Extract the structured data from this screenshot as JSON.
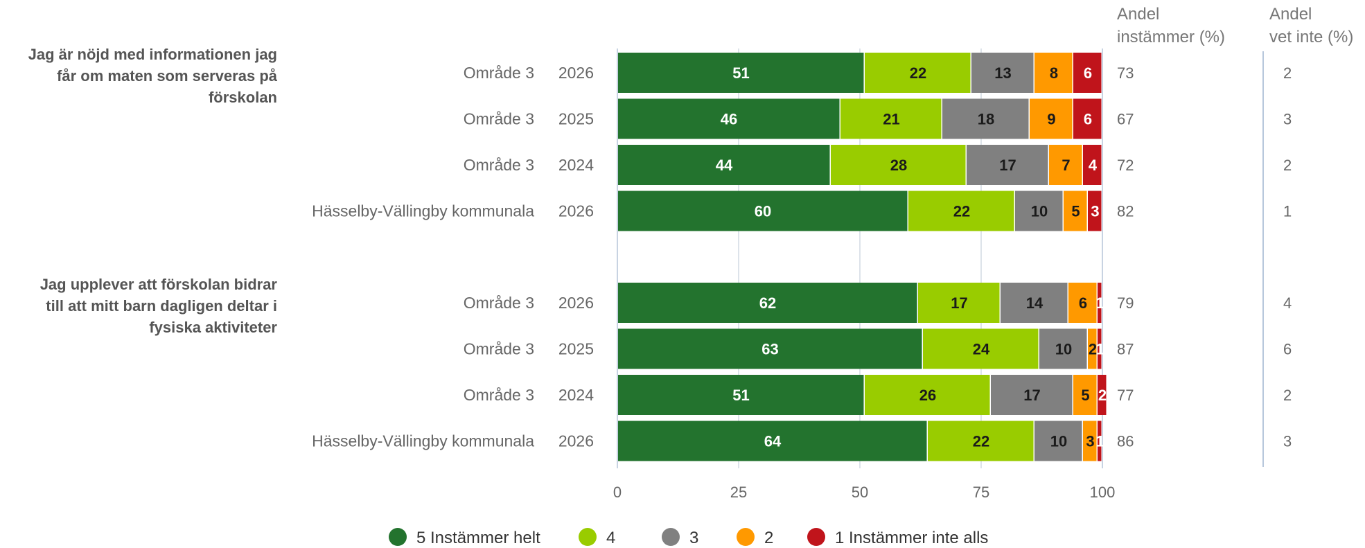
{
  "chart_data": {
    "type": "bar",
    "orientation": "horizontal",
    "stacked": true,
    "xlim": [
      0,
      100
    ],
    "xticks": [
      "0",
      "25",
      "50",
      "75",
      "100"
    ],
    "grid": true,
    "legend_position": "bottom",
    "column_headers": {
      "agree_line1": "Andel",
      "agree_line2": "instämmer (%)",
      "dontknow_line1": "Andel",
      "dontknow_line2": "vet inte (%)"
    },
    "series": [
      {
        "name": "5 Instämmer helt",
        "color": "#23732e",
        "label_color": "#ffffff"
      },
      {
        "name": "4",
        "color": "#99cc00",
        "label_color": "#1a1a1a"
      },
      {
        "name": "3",
        "color": "#808080",
        "label_color": "#1a1a1a"
      },
      {
        "name": "2",
        "color": "#ff9900",
        "label_color": "#1a1a1a"
      },
      {
        "name": "1 Instämmer inte alls",
        "color": "#c0141b",
        "label_color": "#ffffff"
      }
    ],
    "groups": [
      {
        "question_lines": [
          "Jag är nöjd med informationen jag",
          "får om maten som serveras på",
          "förskolan"
        ],
        "rows": [
          {
            "unit": "Område 3",
            "year": "2026",
            "values": [
              51,
              22,
              13,
              8,
              6
            ],
            "agree": "73",
            "dontknow": "2"
          },
          {
            "unit": "Område 3",
            "year": "2025",
            "values": [
              46,
              21,
              18,
              9,
              6
            ],
            "agree": "67",
            "dontknow": "3"
          },
          {
            "unit": "Område 3",
            "year": "2024",
            "values": [
              44,
              28,
              17,
              7,
              4
            ],
            "agree": "72",
            "dontknow": "2"
          },
          {
            "unit": "Hässelby-Vällingby kommunala",
            "year": "2026",
            "values": [
              60,
              22,
              10,
              5,
              3
            ],
            "agree": "82",
            "dontknow": "1"
          }
        ]
      },
      {
        "question_lines": [
          "Jag upplever att förskolan bidrar",
          "till att mitt barn dagligen deltar i",
          "fysiska aktiviteter"
        ],
        "rows": [
          {
            "unit": "Område 3",
            "year": "2026",
            "values": [
              62,
              17,
              14,
              6,
              1
            ],
            "agree": "79",
            "dontknow": "4"
          },
          {
            "unit": "Område 3",
            "year": "2025",
            "values": [
              63,
              24,
              10,
              2,
              1
            ],
            "agree": "87",
            "dontknow": "6"
          },
          {
            "unit": "Område 3",
            "year": "2024",
            "values": [
              51,
              26,
              17,
              5,
              2
            ],
            "agree": "77",
            "dontknow": "2"
          },
          {
            "unit": "Hässelby-Vällingby kommunala",
            "year": "2026",
            "values": [
              64,
              22,
              10,
              3,
              1
            ],
            "agree": "86",
            "dontknow": "3"
          }
        ]
      }
    ]
  }
}
